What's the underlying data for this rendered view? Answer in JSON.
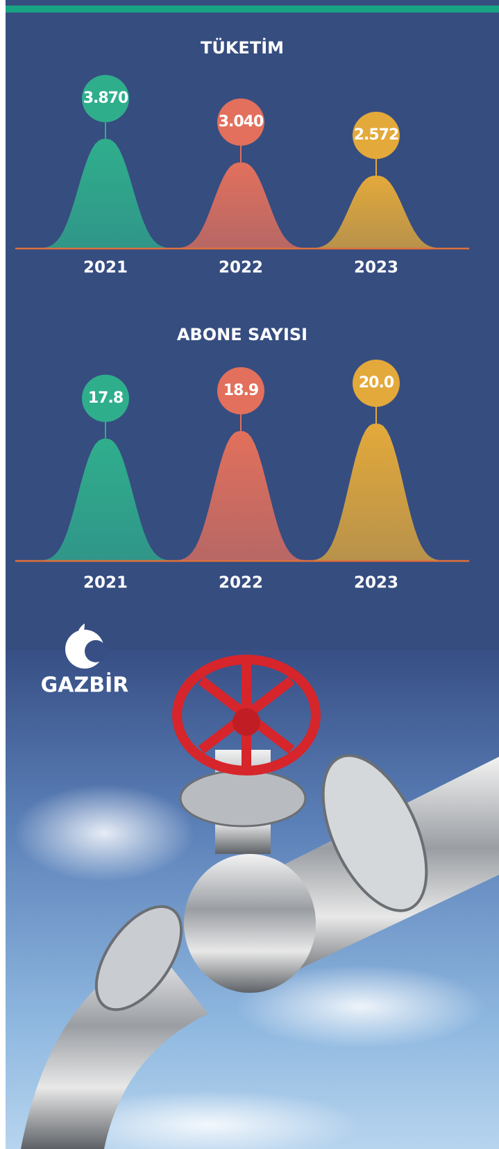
{
  "chart_data": [
    {
      "type": "bell",
      "title": "TÜKETİM",
      "categories": [
        "2021",
        "2022",
        "2023"
      ],
      "values": [
        3870,
        3040,
        2572
      ],
      "value_labels": [
        "3.870",
        "3.040",
        "2.572"
      ],
      "colors": [
        "#2fae8c",
        "#e2705c",
        "#e3a93a"
      ]
    },
    {
      "type": "bell",
      "title": "ABONE SAYISI",
      "categories": [
        "2021",
        "2022",
        "2023"
      ],
      "values": [
        17.8,
        18.9,
        20.0
      ],
      "value_labels": [
        "17.8",
        "18.9",
        "20.0"
      ],
      "colors": [
        "#2fae8c",
        "#e2705c",
        "#e3a93a"
      ]
    }
  ],
  "logo": "GAZBİR"
}
